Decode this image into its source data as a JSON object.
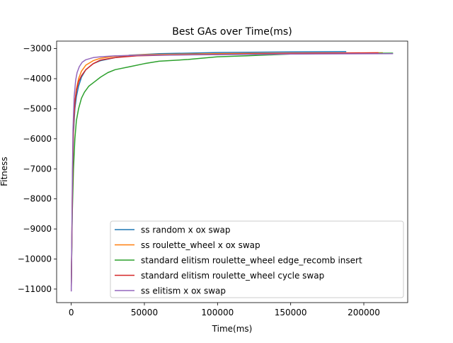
{
  "chart_data": {
    "type": "line",
    "title": "Best GAs over Time(ms)",
    "xlabel": "Time(ms)",
    "ylabel": "Fitness",
    "xlim": [
      -10000,
      230000
    ],
    "ylim": [
      -11450,
      -2750
    ],
    "xticks": [
      {
        "value": 0,
        "label": "0"
      },
      {
        "value": 50000,
        "label": "50000"
      },
      {
        "value": 100000,
        "label": "100000"
      },
      {
        "value": 150000,
        "label": "150000"
      },
      {
        "value": 200000,
        "label": "200000"
      }
    ],
    "yticks": [
      {
        "value": -3000,
        "label": "−3000"
      },
      {
        "value": -4000,
        "label": "−4000"
      },
      {
        "value": -5000,
        "label": "−5000"
      },
      {
        "value": -6000,
        "label": "−6000"
      },
      {
        "value": -7000,
        "label": "−7000"
      },
      {
        "value": -8000,
        "label": "−8000"
      },
      {
        "value": -9000,
        "label": "−9000"
      },
      {
        "value": -10000,
        "label": "−10000"
      },
      {
        "value": -11000,
        "label": "−11000"
      }
    ],
    "grid": false,
    "legend_position": "lower-right",
    "series": [
      {
        "name": "ss random x ox swap",
        "color": "#1f77b4",
        "points": [
          [
            0,
            -11000
          ],
          [
            500,
            -9000
          ],
          [
            1000,
            -7000
          ],
          [
            1500,
            -5800
          ],
          [
            2500,
            -5000
          ],
          [
            3500,
            -4600
          ],
          [
            5000,
            -4250
          ],
          [
            7000,
            -3950
          ],
          [
            10000,
            -3700
          ],
          [
            15000,
            -3500
          ],
          [
            20000,
            -3400
          ],
          [
            30000,
            -3300
          ],
          [
            40000,
            -3220
          ],
          [
            60000,
            -3170
          ],
          [
            100000,
            -3130
          ],
          [
            150000,
            -3110
          ],
          [
            188000,
            -3100
          ]
        ]
      },
      {
        "name": "ss roulette_wheel x ox swap",
        "color": "#ff7f0e",
        "points": [
          [
            0,
            -10950
          ],
          [
            500,
            -8800
          ],
          [
            1000,
            -6800
          ],
          [
            1500,
            -5600
          ],
          [
            2500,
            -4800
          ],
          [
            3500,
            -4350
          ],
          [
            5000,
            -4000
          ],
          [
            7000,
            -3750
          ],
          [
            10000,
            -3550
          ],
          [
            15000,
            -3400
          ],
          [
            20000,
            -3320
          ],
          [
            30000,
            -3250
          ],
          [
            50000,
            -3200
          ],
          [
            100000,
            -3170
          ],
          [
            150000,
            -3150
          ],
          [
            213000,
            -3140
          ]
        ]
      },
      {
        "name": "standard elitism roulette_wheel edge_recomb insert",
        "color": "#2ca02c",
        "points": [
          [
            0,
            -10900
          ],
          [
            700,
            -8500
          ],
          [
            1500,
            -7000
          ],
          [
            2500,
            -6000
          ],
          [
            3500,
            -5400
          ],
          [
            5000,
            -5000
          ],
          [
            7000,
            -4650
          ],
          [
            9000,
            -4450
          ],
          [
            12000,
            -4250
          ],
          [
            16000,
            -4100
          ],
          [
            20000,
            -3950
          ],
          [
            25000,
            -3800
          ],
          [
            30000,
            -3700
          ],
          [
            40000,
            -3600
          ],
          [
            50000,
            -3500
          ],
          [
            60000,
            -3420
          ],
          [
            80000,
            -3360
          ],
          [
            100000,
            -3270
          ],
          [
            120000,
            -3240
          ],
          [
            150000,
            -3180
          ],
          [
            180000,
            -3160
          ],
          [
            220000,
            -3150
          ]
        ]
      },
      {
        "name": "standard elitism roulette_wheel cycle swap",
        "color": "#d62728",
        "points": [
          [
            0,
            -11050
          ],
          [
            500,
            -9000
          ],
          [
            1000,
            -7000
          ],
          [
            1500,
            -5500
          ],
          [
            2500,
            -4800
          ],
          [
            3500,
            -4400
          ],
          [
            5000,
            -4100
          ],
          [
            7000,
            -3900
          ],
          [
            10000,
            -3700
          ],
          [
            15000,
            -3500
          ],
          [
            20000,
            -3380
          ],
          [
            30000,
            -3300
          ],
          [
            45000,
            -3240
          ],
          [
            64000,
            -3220
          ],
          [
            100000,
            -3190
          ],
          [
            150000,
            -3160
          ],
          [
            210000,
            -3140
          ]
        ]
      },
      {
        "name": "ss elitism x ox swap",
        "color": "#9467bd",
        "points": [
          [
            0,
            -11080
          ],
          [
            400,
            -9200
          ],
          [
            800,
            -7200
          ],
          [
            1200,
            -5700
          ],
          [
            2000,
            -4600
          ],
          [
            3000,
            -4050
          ],
          [
            4000,
            -3800
          ],
          [
            5500,
            -3600
          ],
          [
            7500,
            -3450
          ],
          [
            10000,
            -3370
          ],
          [
            15000,
            -3300
          ],
          [
            20000,
            -3270
          ],
          [
            30000,
            -3240
          ],
          [
            50000,
            -3220
          ],
          [
            100000,
            -3200
          ],
          [
            150000,
            -3180
          ],
          [
            220000,
            -3170
          ]
        ]
      }
    ]
  }
}
